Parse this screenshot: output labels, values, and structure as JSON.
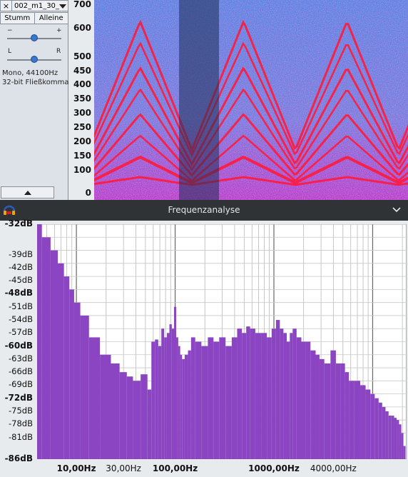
{
  "track": {
    "close_label": "×",
    "name": "002_m1_30_",
    "mute_label": "Stumm",
    "solo_label": "Alleine",
    "gain_minus": "−",
    "gain_plus": "+",
    "pan_left": "L",
    "pan_right": "R",
    "info_line1": "Mono, 44100Hz",
    "info_line2": "32-bit Fließkomma"
  },
  "ruler": {
    "ticks": [
      "700",
      "600",
      "500",
      "450",
      "400",
      "350",
      "300",
      "250",
      "200",
      "150",
      "100",
      "0"
    ]
  },
  "dialog": {
    "title": "Frequenzanalyse",
    "icon": "audacity-headphones-icon",
    "chevron_icon": "chevron-down-icon"
  },
  "colors": {
    "spectrum_fill": "#8b45c2",
    "dialog_bar": "#2f3336",
    "spectrogram_bg": "#5b8fe0",
    "spectrogram_line": "#ff1a3a"
  },
  "chart_data": {
    "type": "area",
    "title": "",
    "xlabel": "",
    "ylabel": "",
    "x_scale": "log",
    "xlim": [
      4,
      22050
    ],
    "ylim": [
      -86,
      -32
    ],
    "grid": true,
    "db_labels": [
      "-32dB",
      "-39dB",
      "-42dB",
      "-45dB",
      "-48dB",
      "-51dB",
      "-54dB",
      "-57dB",
      "-60dB",
      "-63dB",
      "-66dB",
      "-69dB",
      "-72dB",
      "-75dB",
      "-78dB",
      "-81dB",
      "-86dB"
    ],
    "hz_labels": [
      "10,00Hz",
      "30,00Hz",
      "100,00Hz",
      "1000,00Hz",
      "4000,00Hz"
    ],
    "x": [
      4,
      5,
      6,
      7,
      8,
      9,
      10,
      12,
      15,
      20,
      25,
      30,
      35,
      40,
      50,
      55,
      60,
      65,
      70,
      75,
      80,
      85,
      90,
      95,
      100,
      105,
      110,
      115,
      120,
      130,
      140,
      150,
      170,
      200,
      230,
      260,
      300,
      350,
      400,
      450,
      500,
      550,
      600,
      700,
      800,
      900,
      1000,
      1100,
      1200,
      1300,
      1400,
      1500,
      1600,
      1800,
      2000,
      2200,
      2500,
      2800,
      3000,
      3500,
      4000,
      4500,
      5000,
      5500,
      6000,
      7000,
      8000,
      9000,
      10000,
      11000,
      12000,
      13000,
      14000,
      15000,
      16000,
      17000,
      18000,
      19000,
      20000,
      21000,
      22050
    ],
    "values": [
      -32,
      -35,
      -38,
      -41,
      -44,
      -47,
      -50,
      -53,
      -58,
      -62,
      -64,
      -66,
      -67,
      -68,
      -66.5,
      -70,
      -59,
      -58.5,
      -60,
      -56,
      -58,
      -57,
      -55,
      -56,
      -51,
      -58,
      -60,
      -62,
      -63,
      -62,
      -61,
      -58,
      -59,
      -60,
      -58,
      -59,
      -58,
      -60,
      -58,
      -56,
      -57,
      -55.5,
      -56,
      -57,
      -57,
      -58,
      -56,
      -54,
      -56,
      -57,
      -59,
      -57,
      -56,
      -58,
      -59,
      -59,
      -61,
      -62,
      -63,
      -64,
      -61,
      -64,
      -64,
      -66,
      -68,
      -68,
      -69,
      -70,
      -71,
      -72,
      -73,
      -74,
      -75,
      -76,
      -76,
      -76.5,
      -77,
      -78,
      -80,
      -83,
      -86
    ]
  }
}
